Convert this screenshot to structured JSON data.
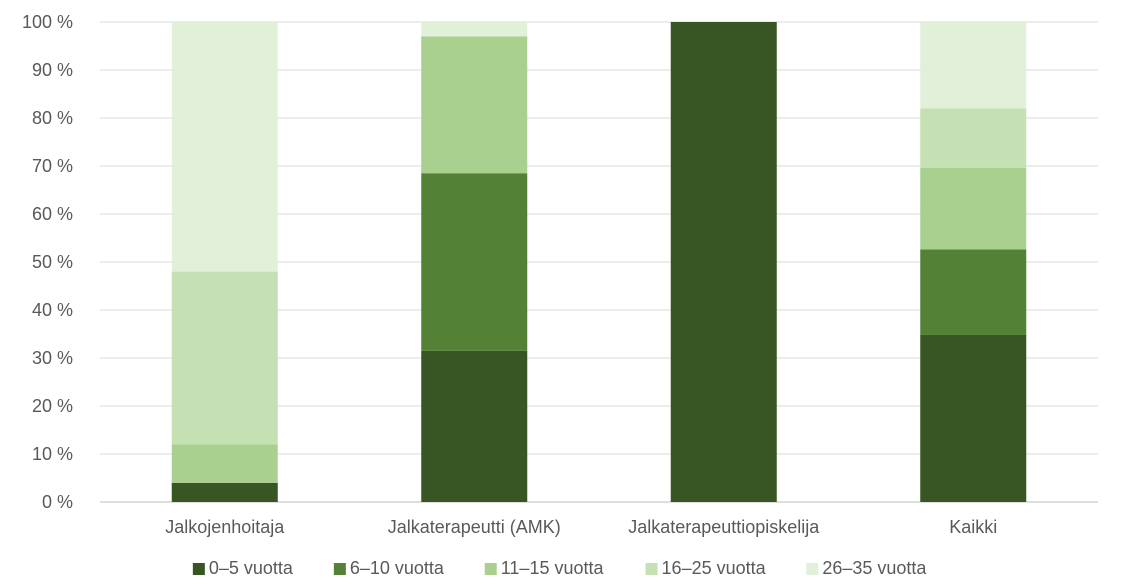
{
  "chart_data": {
    "type": "bar",
    "stacked": true,
    "categories": [
      "Jalkojenhoitaja",
      "Jalkaterapeutti (AMK)",
      "Jalkaterapeuttiopiskelija",
      "Kaikki"
    ],
    "series": [
      {
        "name": "0–5 vuotta",
        "color": "#375623",
        "values": [
          4,
          31.5,
          100,
          34.8
        ]
      },
      {
        "name": "6–10 vuotta",
        "color": "#538135",
        "values": [
          0,
          37,
          0,
          17.8
        ]
      },
      {
        "name": "11–15 vuotta",
        "color": "#a9d08e",
        "values": [
          8,
          28.5,
          0,
          17
        ]
      },
      {
        "name": "16–25 vuotta",
        "color": "#c5e0b3",
        "values": [
          36,
          0,
          0,
          12.4
        ]
      },
      {
        "name": "26–35 vuotta",
        "color": "#e2efd9",
        "values": [
          52,
          3,
          0,
          18
        ]
      }
    ],
    "y_ticks": [
      "0 %",
      "10 %",
      "20 %",
      "30 %",
      "40 %",
      "50 %",
      "60 %",
      "70 %",
      "80 %",
      "90 %",
      "100 %"
    ],
    "ylim": [
      0,
      100
    ],
    "grid": true,
    "legend_position": "bottom"
  }
}
